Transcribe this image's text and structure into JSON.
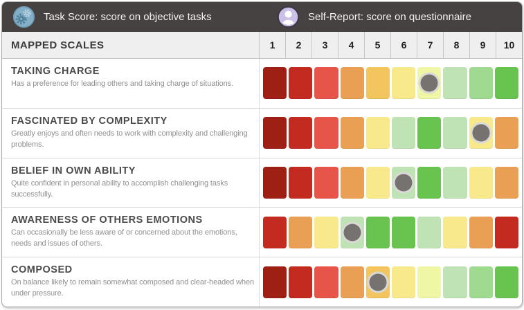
{
  "panel": {
    "legend": [
      {
        "icon": "gears-icon",
        "label": "Task Score: score on objective tasks"
      },
      {
        "icon": "person-icon",
        "label": "Self-Report: score on questionnaire"
      }
    ],
    "scales_header": {
      "title": "MAPPED SCALES",
      "columns": [
        "1",
        "2",
        "3",
        "4",
        "5",
        "6",
        "7",
        "8",
        "9",
        "10"
      ]
    }
  },
  "palette": {
    "dark_red": "#9e2015",
    "red": "#c32b20",
    "light_red": "#e6544a",
    "orange": "#e9a054",
    "gold": "#f2c55e",
    "light_yellow": "#f8e98c",
    "pale_lime": "#eff7a6",
    "pale_green": "#bfe3b4",
    "light_green": "#9fda90",
    "green": "#68c44e"
  },
  "marker": {
    "fill": "#767270",
    "ring": "rgba(244,243,240,0.8)"
  },
  "colors": {
    "header_bg": "#474242",
    "header_text": "#f3f1f0",
    "subheader_bg": "#efefef",
    "border": "#a8a8a8",
    "divider": "#d8d8d8"
  },
  "rows": [
    {
      "title": "TAKING CHARGE",
      "description": "Has a preference for leading others and taking charge of situations.",
      "cells": [
        "dark_red",
        "red",
        "light_red",
        "orange",
        "gold",
        "light_yellow",
        "pale_lime",
        "pale_green",
        "light_green",
        "green"
      ],
      "marker_position": 7
    },
    {
      "title": "FASCINATED BY COMPLEXITY",
      "description": "Greatly enjoys and often needs to work with complexity and challenging problems.",
      "cells": [
        "dark_red",
        "red",
        "light_red",
        "orange",
        "light_yellow",
        "pale_green",
        "green",
        "pale_green",
        "light_yellow",
        "orange"
      ],
      "marker_position": 9
    },
    {
      "title": "BELIEF IN OWN ABILITY",
      "description": "Quite confident in personal ability to accomplish challenging tasks successfully.",
      "cells": [
        "dark_red",
        "red",
        "light_red",
        "orange",
        "light_yellow",
        "pale_green",
        "green",
        "pale_green",
        "light_yellow",
        "orange"
      ],
      "marker_position": 6
    },
    {
      "title": "AWARENESS OF OTHERS EMOTIONS",
      "description": "Can occasionally be less aware of or concerned about the emotions, needs and issues of others.",
      "cells": [
        "red",
        "orange",
        "light_yellow",
        "pale_green",
        "green",
        "green",
        "pale_green",
        "light_yellow",
        "orange",
        "red"
      ],
      "marker_position": 4
    },
    {
      "title": "COMPOSED",
      "description": "On balance likely to remain somewhat composed and clear-headed when under pressure.",
      "cells": [
        "dark_red",
        "red",
        "light_red",
        "orange",
        "gold",
        "light_yellow",
        "pale_lime",
        "pale_green",
        "light_green",
        "green"
      ],
      "marker_position": 5
    }
  ],
  "chart_data": {
    "type": "heatmap",
    "title": "MAPPED SCALES",
    "x_ticks": [
      1,
      2,
      3,
      4,
      5,
      6,
      7,
      8,
      9,
      10
    ],
    "x_range": [
      1,
      10
    ],
    "legend": [
      "Task Score: score on objective tasks",
      "Self-Report: score on questionnaire"
    ],
    "series": [
      {
        "name": "TAKING CHARGE",
        "marker_score": 7
      },
      {
        "name": "FASCINATED BY COMPLEXITY",
        "marker_score": 9
      },
      {
        "name": "BELIEF IN OWN ABILITY",
        "marker_score": 6
      },
      {
        "name": "AWARENESS OF OTHERS EMOTIONS",
        "marker_score": 4
      },
      {
        "name": "COMPOSED",
        "marker_score": 5
      }
    ]
  }
}
